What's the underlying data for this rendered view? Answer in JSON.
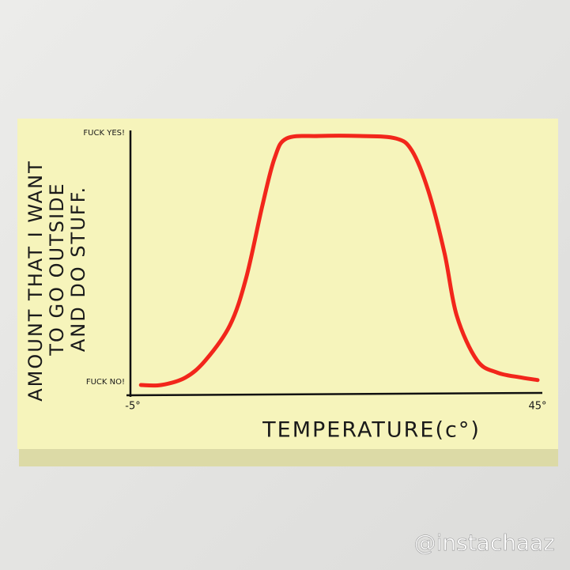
{
  "chart_data": {
    "type": "line",
    "ylabel": [
      "AMOUNT THAT I WANT",
      "TO GO OUTSIDE",
      "AND DO STUFF."
    ],
    "xlabel": "TEMPERATURE(c°)",
    "x": [
      -4,
      -1.5,
      1.5,
      4,
      7,
      9,
      11,
      12.5,
      14,
      18,
      23,
      27.5,
      29.5,
      31.5,
      33.5,
      35,
      37.5,
      40,
      43,
      45
    ],
    "values": [
      0,
      0,
      0.03,
      0.1,
      0.24,
      0.43,
      0.72,
      0.91,
      0.99,
      1,
      1,
      0.99,
      0.94,
      0.78,
      0.53,
      0.28,
      0.1,
      0.05,
      0.03,
      0.02
    ],
    "color": "#f2261b",
    "xlim": [
      -5,
      45
    ],
    "xticks": [
      {
        "value": -5,
        "label": "-5°"
      },
      {
        "value": 45,
        "label": "45°"
      }
    ],
    "ylim": [
      0,
      1
    ],
    "yticks": [
      {
        "value": 0,
        "label": "FUCK NO!"
      },
      {
        "value": 1,
        "label": "FUCK YES!"
      }
    ]
  },
  "watermark": "@instachaaz"
}
